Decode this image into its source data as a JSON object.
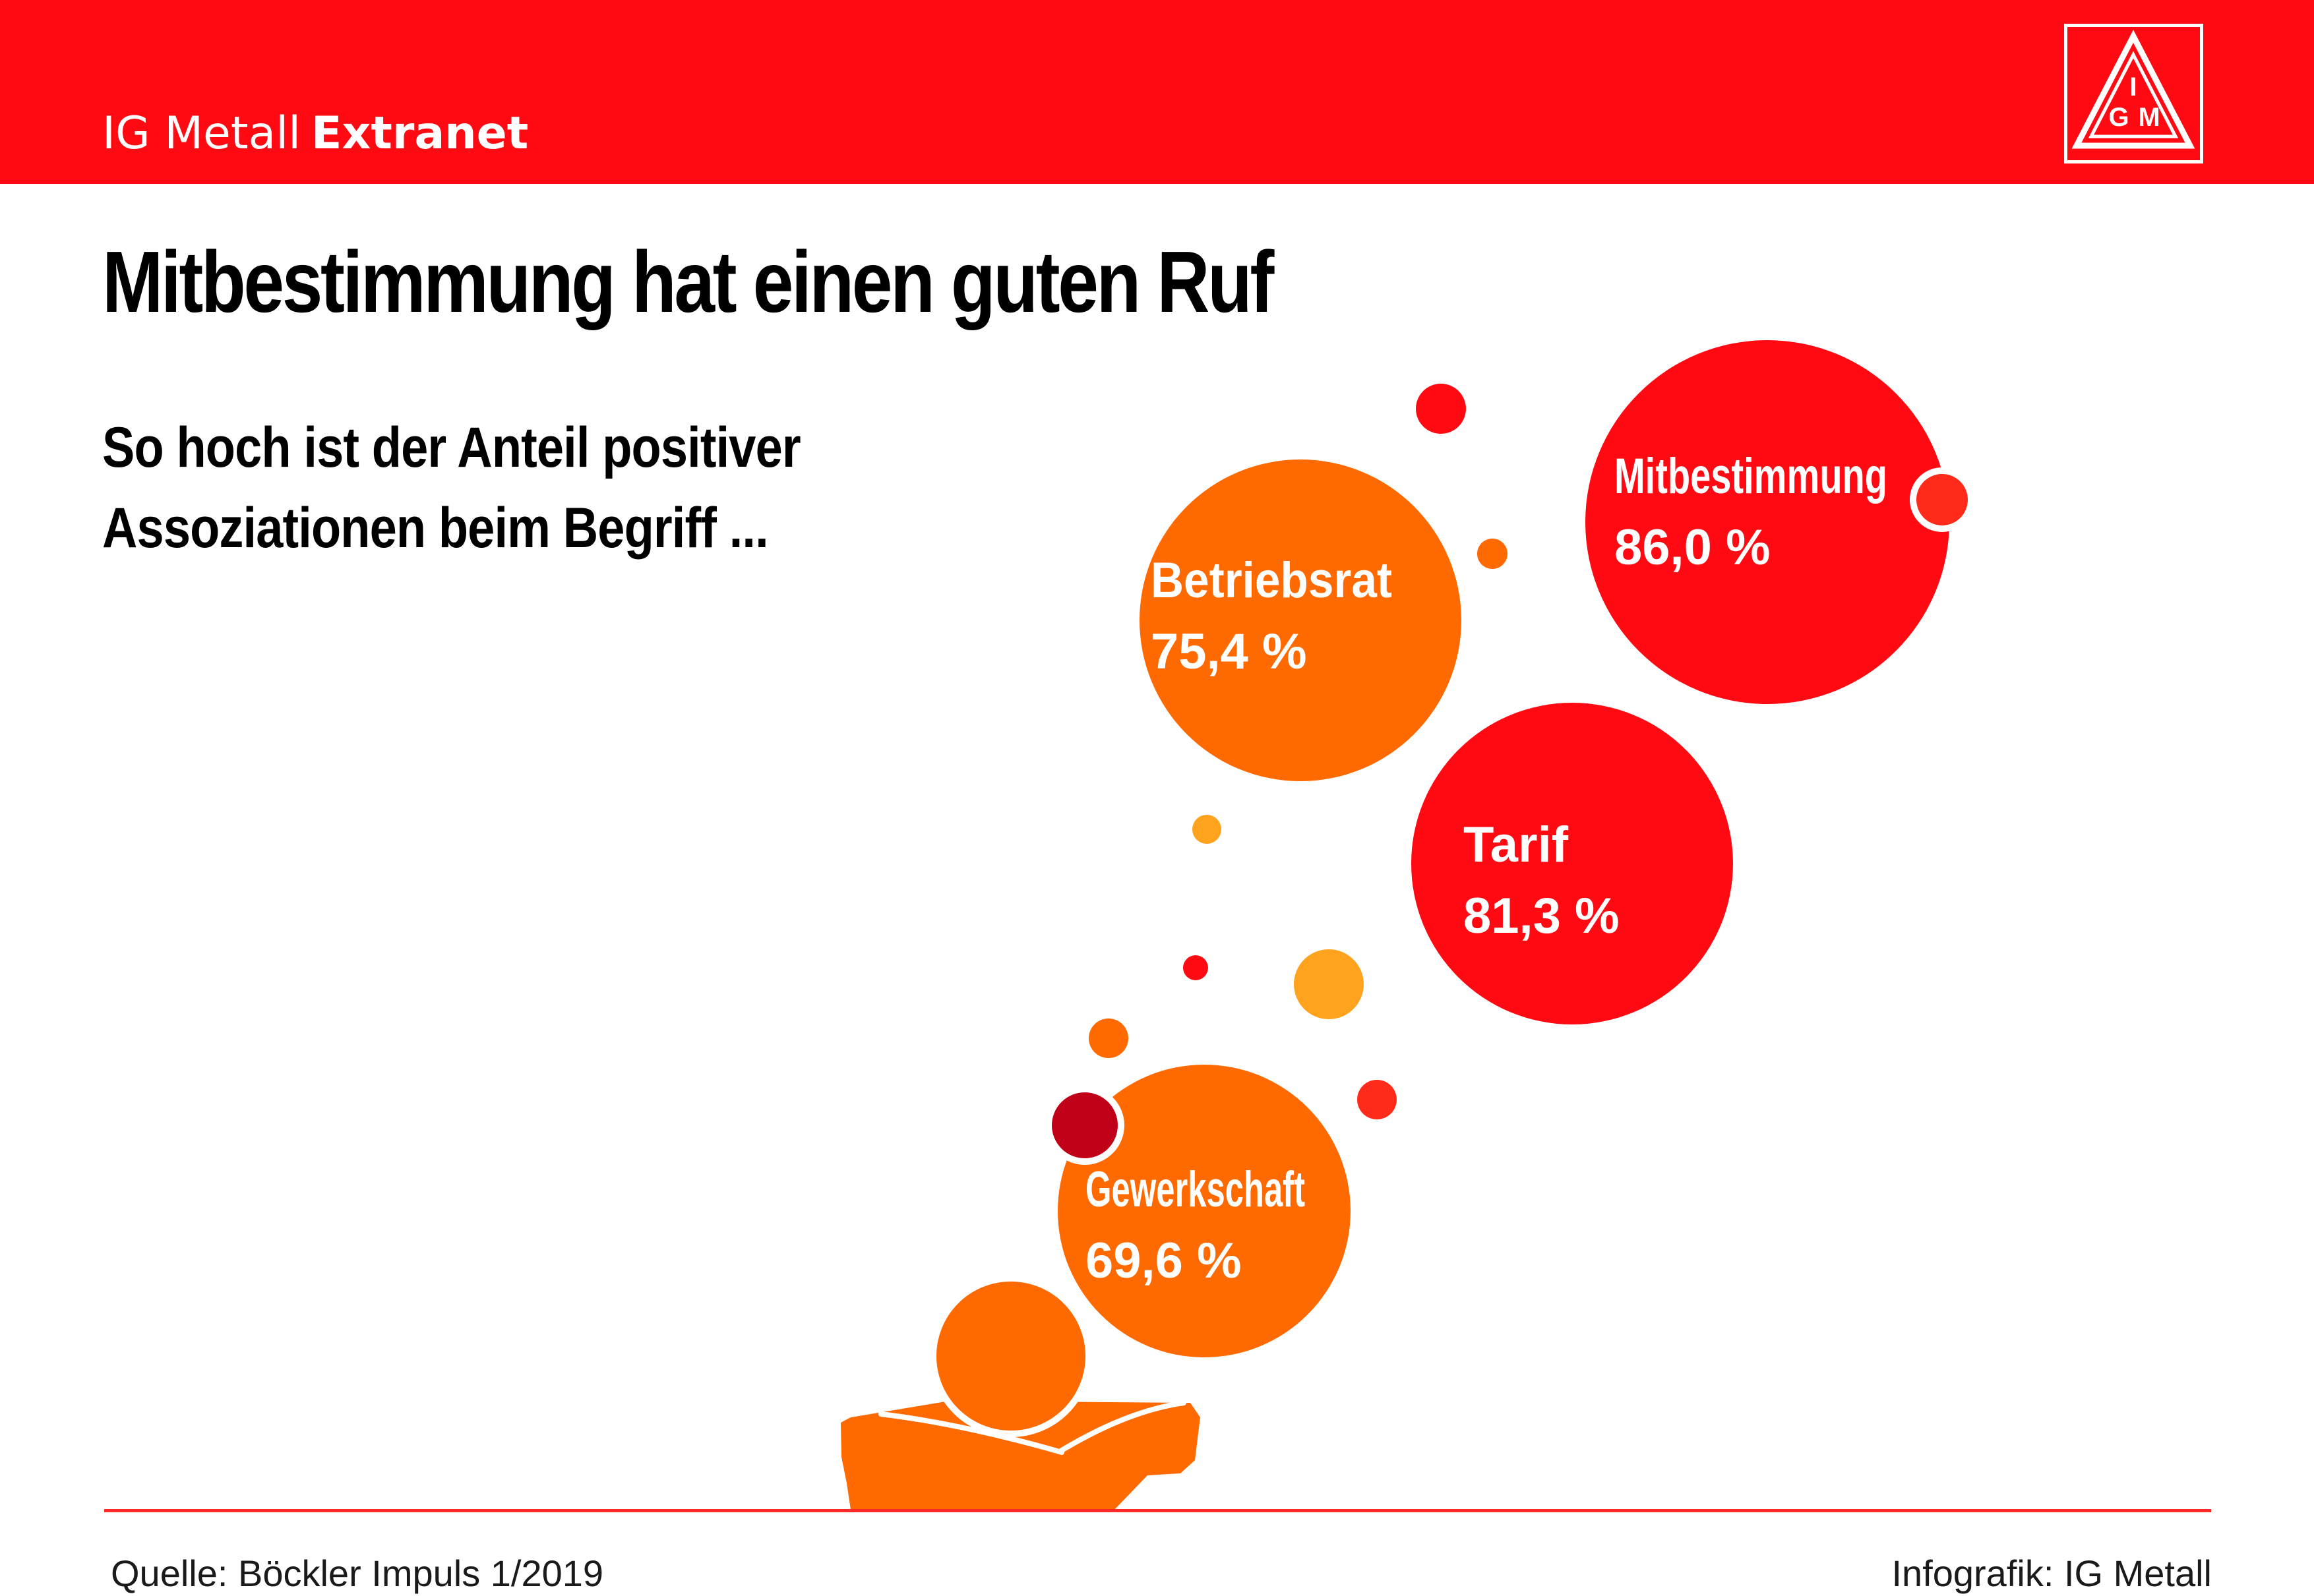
{
  "header": {
    "brand_light": "IG Metall",
    "brand_bold": "Extranet",
    "logo_icon": "ig-metall-logo-icon",
    "logo_letters": [
      "I",
      "G",
      "M"
    ],
    "color": "#ff0a12"
  },
  "title": "Mitbestimmung hat einen guten Ruf",
  "subtitle": {
    "line1": "So hoch ist der Anteil positiver",
    "line2": "Assoziationen beim Begriff ..."
  },
  "chart_data": {
    "type": "bubble",
    "title": "Mitbestimmung hat einen guten Ruf",
    "subtitle": "So hoch ist der Anteil positiver Assoziationen beim Begriff ...",
    "unit": "%",
    "categories": [
      "Gewerkschaft",
      "Betriebsrat",
      "Tarif",
      "Mitbestimmung"
    ],
    "values": [
      69.6,
      75.4,
      81.3,
      86.0
    ],
    "value_labels": [
      "69,6 %",
      "75,4 %",
      "81,3 %",
      "86,0 %"
    ],
    "colors": [
      "#ff6a00",
      "#ff6a00",
      "#ff0a12",
      "#ff0a12"
    ],
    "decoration": "person thinking with bubbles rising"
  },
  "footer": {
    "source": "Quelle: Böckler Impuls 1/2019",
    "credit": "Infografik: IG Metall"
  }
}
